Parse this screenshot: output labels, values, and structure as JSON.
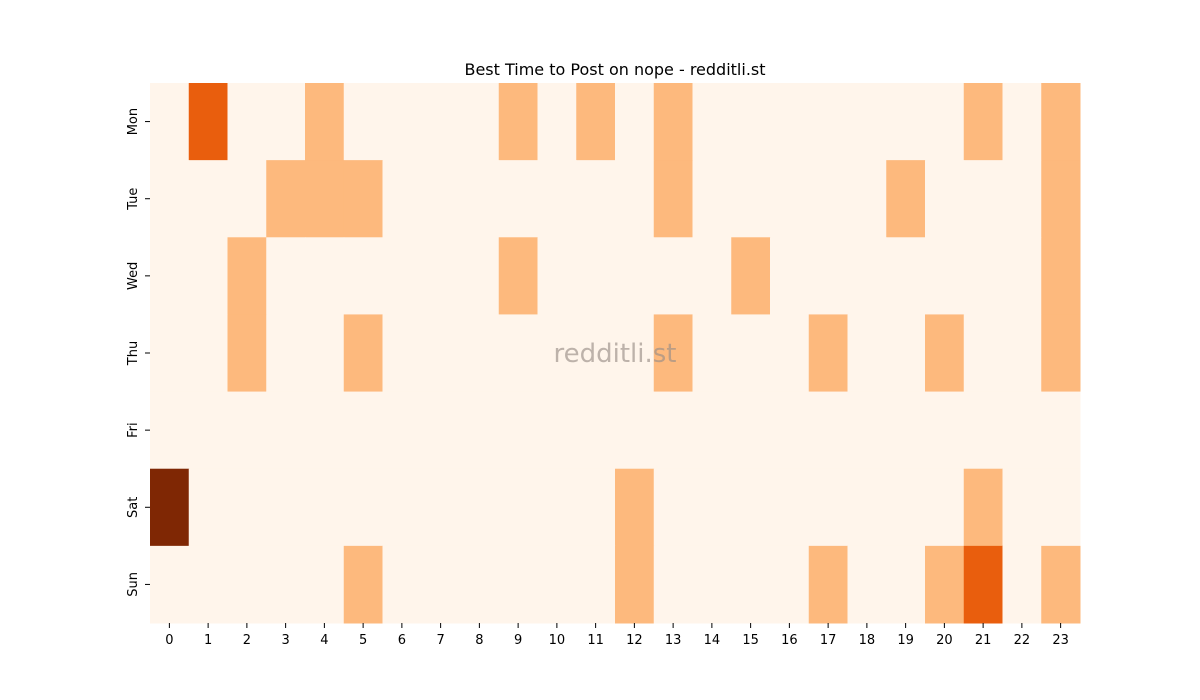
{
  "chart_data": {
    "type": "heatmap",
    "title": "Best Time to Post on nope - redditli.st",
    "watermark": "redditli.st",
    "x_categories": [
      "0",
      "1",
      "2",
      "3",
      "4",
      "5",
      "6",
      "7",
      "8",
      "9",
      "10",
      "11",
      "12",
      "13",
      "14",
      "15",
      "16",
      "17",
      "18",
      "19",
      "20",
      "21",
      "22",
      "23"
    ],
    "y_categories": [
      "Mon",
      "Tue",
      "Wed",
      "Thu",
      "Fri",
      "Sat",
      "Sun"
    ],
    "values": [
      [
        0,
        2,
        0,
        0,
        1,
        0,
        0,
        0,
        0,
        1,
        0,
        1,
        0,
        1,
        0,
        0,
        0,
        0,
        0,
        0,
        0,
        1,
        0,
        1
      ],
      [
        0,
        0,
        0,
        1,
        1,
        1,
        0,
        0,
        0,
        0,
        0,
        0,
        0,
        1,
        0,
        0,
        0,
        0,
        0,
        1,
        0,
        0,
        0,
        1
      ],
      [
        0,
        0,
        1,
        0,
        0,
        0,
        0,
        0,
        0,
        1,
        0,
        0,
        0,
        0,
        0,
        1,
        0,
        0,
        0,
        0,
        0,
        0,
        0,
        1
      ],
      [
        0,
        0,
        1,
        0,
        0,
        1,
        0,
        0,
        0,
        0,
        0,
        0,
        0,
        1,
        0,
        0,
        0,
        1,
        0,
        0,
        1,
        0,
        0,
        1
      ],
      [
        0,
        0,
        0,
        0,
        0,
        0,
        0,
        0,
        0,
        0,
        0,
        0,
        0,
        0,
        0,
        0,
        0,
        0,
        0,
        0,
        0,
        0,
        0,
        0
      ],
      [
        3,
        0,
        0,
        0,
        0,
        0,
        0,
        0,
        0,
        0,
        0,
        0,
        1,
        0,
        0,
        0,
        0,
        0,
        0,
        0,
        0,
        1,
        0,
        0
      ],
      [
        0,
        0,
        0,
        0,
        0,
        1,
        0,
        0,
        0,
        0,
        0,
        0,
        1,
        0,
        0,
        0,
        0,
        1,
        0,
        0,
        1,
        2,
        0,
        1
      ]
    ],
    "colormap": "Oranges",
    "value_colors": {
      "0": "#fff5eb",
      "1": "#fdb97d",
      "2": "#e95e0d",
      "3": "#7f2704"
    },
    "colorbar": false,
    "grid": false
  }
}
